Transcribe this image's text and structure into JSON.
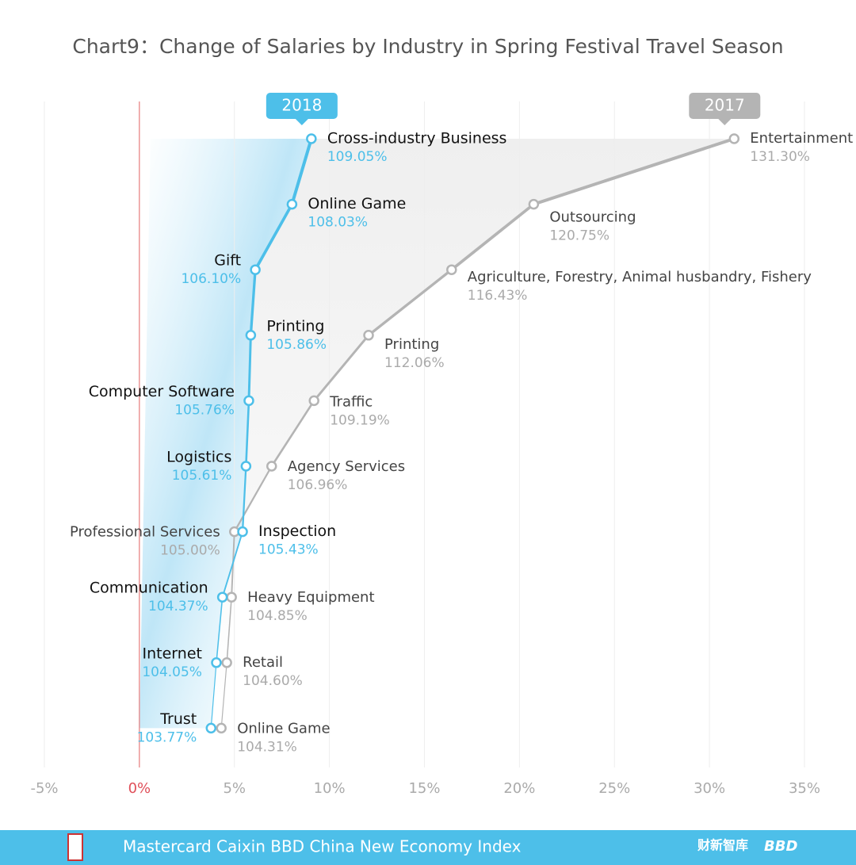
{
  "chart_data": {
    "type": "line",
    "title": "Chart9：Change of Salaries by Industry in Spring Festival Travel Season",
    "xlim": [
      95,
      135
    ],
    "xticks": [
      {
        "value": 95,
        "label": "-5%"
      },
      {
        "value": 100,
        "label": "0%"
      },
      {
        "value": 105,
        "label": "5%"
      },
      {
        "value": 110,
        "label": "10%"
      },
      {
        "value": 115,
        "label": "15%"
      },
      {
        "value": 120,
        "label": "20%"
      },
      {
        "value": 125,
        "label": "25%"
      },
      {
        "value": 130,
        "label": "30%"
      },
      {
        "value": 135,
        "label": "35%"
      }
    ],
    "grid": true,
    "series": [
      {
        "name": "2018",
        "color": "#4dbfe9",
        "labels": [
          "Cross-industry Business",
          "Online Game",
          "Gift",
          "Printing",
          "Computer Software",
          "Logistics",
          "Inspection",
          "Communication",
          "Internet",
          "Trust"
        ],
        "values": [
          109.05,
          108.03,
          106.1,
          105.86,
          105.76,
          105.61,
          105.43,
          104.37,
          104.05,
          103.77
        ],
        "value_labels": [
          "109.05%",
          "108.03%",
          "106.10%",
          "105.86%",
          "105.76%",
          "105.61%",
          "105.43%",
          "104.37%",
          "104.05%",
          "103.77%"
        ]
      },
      {
        "name": "2017",
        "color": "#b4b4b4",
        "labels": [
          "Entertainment",
          "Outsourcing",
          "Agriculture, Forestry, Animal husbandry, Fishery",
          "Printing",
          "Traffic",
          "Agency Services",
          "Professional Services",
          "Heavy Equipment",
          "Retail",
          "Online Game"
        ],
        "values": [
          131.3,
          120.75,
          116.43,
          112.06,
          109.19,
          106.96,
          105.0,
          104.85,
          104.6,
          104.31
        ],
        "value_labels": [
          "131.30%",
          "120.75%",
          "116.43%",
          "112.06%",
          "109.19%",
          "106.96%",
          "105.00%",
          "104.85%",
          "104.60%",
          "104.31%"
        ]
      }
    ]
  },
  "footer": {
    "text": "Mastercard Caixin BBD China New Economy Index",
    "logo1": "财新智库",
    "logo2": "BBD"
  }
}
